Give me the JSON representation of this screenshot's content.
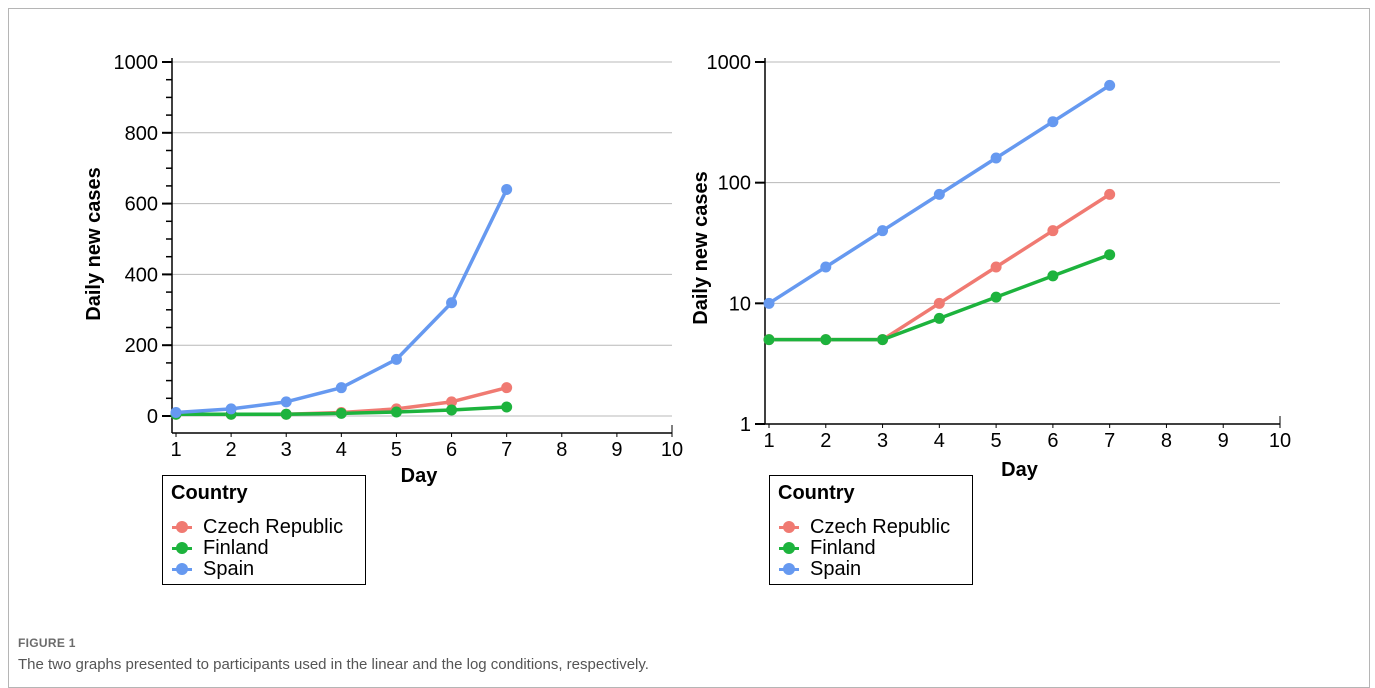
{
  "figure": {
    "label": "FIGURE 1",
    "caption": "The two graphs presented to participants used in the linear and the log conditions, respectively."
  },
  "colors": {
    "Czech Republic": "#f07a72",
    "Finland": "#1db33d",
    "Spain": "#6699f0",
    "grid": "#b8b8b8"
  },
  "chart_data": [
    {
      "type": "line",
      "scale": "linear",
      "title": "",
      "xlabel": "Day",
      "ylabel": "Daily new cases",
      "xlim": [
        1,
        10
      ],
      "ylim": [
        0,
        1000
      ],
      "xticks": [
        1,
        2,
        3,
        4,
        5,
        6,
        7,
        8,
        9,
        10
      ],
      "yticks": [
        0,
        200,
        400,
        600,
        800,
        1000
      ],
      "y_minor_step": 50,
      "grid": "horizontal at major y ticks",
      "x": [
        1,
        2,
        3,
        4,
        5,
        6,
        7
      ],
      "legend": {
        "title": "Country",
        "placement": "bottom-left below plot"
      },
      "series": [
        {
          "name": "Czech Republic",
          "values": [
            5,
            5,
            5,
            10,
            20,
            40,
            80
          ]
        },
        {
          "name": "Finland",
          "values": [
            5,
            5,
            5,
            7.5,
            11.25,
            16.9,
            25.3
          ]
        },
        {
          "name": "Spain",
          "values": [
            10,
            20,
            40,
            80,
            160,
            320,
            640
          ]
        }
      ]
    },
    {
      "type": "line",
      "scale": "log",
      "title": "",
      "xlabel": "Day",
      "ylabel": "Daily new cases",
      "xlim": [
        1,
        10
      ],
      "ylim": [
        1,
        1000
      ],
      "xticks": [
        1,
        2,
        3,
        4,
        5,
        6,
        7,
        8,
        9,
        10
      ],
      "yticks": [
        1,
        10,
        100,
        1000
      ],
      "grid": "horizontal at major y ticks",
      "x": [
        1,
        2,
        3,
        4,
        5,
        6,
        7
      ],
      "legend": {
        "title": "Country",
        "placement": "bottom-left below plot"
      },
      "series": [
        {
          "name": "Czech Republic",
          "values": [
            5,
            5,
            5,
            10,
            20,
            40,
            80
          ]
        },
        {
          "name": "Finland",
          "values": [
            5,
            5,
            5,
            7.5,
            11.25,
            16.9,
            25.3
          ]
        },
        {
          "name": "Spain",
          "values": [
            10,
            20,
            40,
            80,
            160,
            320,
            640
          ]
        }
      ]
    }
  ]
}
